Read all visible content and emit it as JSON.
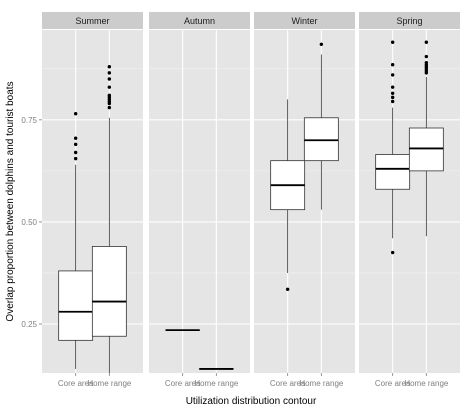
{
  "chart_data": {
    "type": "boxplot",
    "xlabel": "Utilization distribution contour",
    "ylabel": "Overlap proportion between dolphins and tourist boats",
    "ylim": [
      0.13,
      0.97
    ],
    "yticks": [
      0.25,
      0.5,
      0.75
    ],
    "ytick_labels": [
      "0.25",
      "0.50",
      "0.75"
    ],
    "categories": [
      "Core area",
      "Home range"
    ],
    "grid": true,
    "legend": "none",
    "panels": [
      {
        "name": "Summer",
        "boxes": [
          {
            "category": "Core area",
            "whisker_low": 0.14,
            "q1": 0.21,
            "median": 0.28,
            "q3": 0.38,
            "whisker_high": 0.64,
            "outliers": [
              0.655,
              0.67,
              0.69,
              0.705,
              0.765
            ]
          },
          {
            "category": "Home range",
            "whisker_low": 0.13,
            "q1": 0.22,
            "median": 0.305,
            "q3": 0.44,
            "whisker_high": 0.755,
            "outliers": [
              0.78,
              0.79,
              0.795,
              0.8,
              0.805,
              0.81,
              0.83,
              0.85,
              0.865,
              0.88
            ]
          }
        ]
      },
      {
        "name": "Autumn",
        "boxes": [
          {
            "category": "Core area",
            "whisker_low": 0.235,
            "q1": 0.235,
            "median": 0.235,
            "q3": 0.235,
            "whisker_high": 0.235,
            "outliers": []
          },
          {
            "category": "Home range",
            "whisker_low": 0.14,
            "q1": 0.14,
            "median": 0.14,
            "q3": 0.14,
            "whisker_high": 0.14,
            "outliers": []
          }
        ]
      },
      {
        "name": "Winter",
        "boxes": [
          {
            "category": "Core area",
            "whisker_low": 0.375,
            "q1": 0.53,
            "median": 0.59,
            "q3": 0.65,
            "whisker_high": 0.8,
            "outliers": [
              0.335
            ]
          },
          {
            "category": "Home range",
            "whisker_low": 0.53,
            "q1": 0.65,
            "median": 0.7,
            "q3": 0.755,
            "whisker_high": 0.91,
            "outliers": [
              0.935
            ]
          }
        ]
      },
      {
        "name": "Spring",
        "boxes": [
          {
            "category": "Core area",
            "whisker_low": 0.46,
            "q1": 0.58,
            "median": 0.63,
            "q3": 0.665,
            "whisker_high": 0.78,
            "outliers": [
              0.425,
              0.795,
              0.805,
              0.815,
              0.83,
              0.86,
              0.885,
              0.94
            ]
          },
          {
            "category": "Home range",
            "whisker_low": 0.465,
            "q1": 0.625,
            "median": 0.68,
            "q3": 0.73,
            "whisker_high": 0.855,
            "outliers": [
              0.865,
              0.87,
              0.875,
              0.88,
              0.885,
              0.89,
              0.905,
              0.94
            ]
          }
        ]
      }
    ],
    "colors": {
      "panel_bg": "#e5e5e5",
      "strip_bg": "#cccccc",
      "grid_major": "#ffffff",
      "grid_minor": "#f2f2f2",
      "box_fill": "#ffffff",
      "box_line": "#333333",
      "median": "#000000",
      "outlier": "#000000"
    }
  }
}
